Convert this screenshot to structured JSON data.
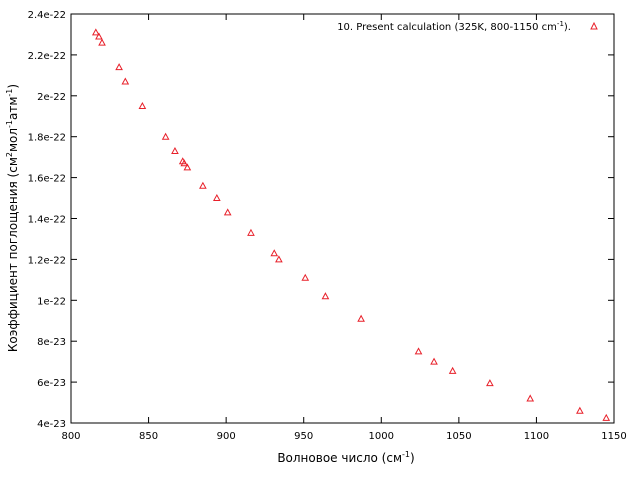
{
  "chart_data": {
    "type": "scatter",
    "xlabel": "Волновое число (см",
    "xlabel_sup": "-1",
    "xlabel_end": ")",
    "ylabel_parts": [
      "Коэффициент поглощения (см",
      "2",
      "мол",
      "-1",
      "атм",
      "-1",
      ")"
    ],
    "xlim": [
      800,
      1150
    ],
    "ylim": [
      4e-23,
      2.4e-22
    ],
    "xticks": [
      800,
      850,
      900,
      950,
      1000,
      1050,
      1100,
      1150
    ],
    "xtick_labels": [
      "800",
      "850",
      "900",
      "950",
      "1000",
      "1050",
      "1100",
      "1150"
    ],
    "yticks": [
      4e-23,
      6e-23,
      8e-23,
      1e-22,
      1.2e-22,
      1.4e-22,
      1.6e-22,
      1.8e-22,
      2e-22,
      2.2e-22,
      2.4e-22
    ],
    "ytick_labels": [
      "4e-23",
      "6e-23",
      "8e-23",
      "1e-22",
      "1.2e-22",
      "1.4e-22",
      "1.6e-22",
      "1.8e-22",
      "2e-22",
      "2.2e-22",
      "2.4e-22"
    ],
    "grid": false,
    "legend_position": "top-right",
    "series": [
      {
        "name": "10. Present calculation (325K, 800-1150 cm",
        "name_sup": "-1",
        "name_end": ").",
        "color": "#e8202a",
        "marker": "triangle",
        "x": [
          816,
          818,
          820,
          831,
          835,
          846,
          861,
          867,
          872,
          873,
          875,
          885,
          894,
          901,
          916,
          931,
          934,
          951,
          964,
          987,
          1024,
          1034,
          1046,
          1070,
          1096,
          1128,
          1145
        ],
        "y": [
          2.31e-22,
          2.29e-22,
          2.26e-22,
          2.14e-22,
          2.07e-22,
          1.95e-22,
          1.8e-22,
          1.73e-22,
          1.68e-22,
          1.67e-22,
          1.65e-22,
          1.56e-22,
          1.5e-22,
          1.43e-22,
          1.33e-22,
          1.23e-22,
          1.2e-22,
          1.11e-22,
          1.02e-22,
          9.1e-23,
          7.5e-23,
          7e-23,
          6.55e-23,
          5.95e-23,
          5.2e-23,
          4.6e-23,
          4.25e-23
        ]
      }
    ]
  }
}
